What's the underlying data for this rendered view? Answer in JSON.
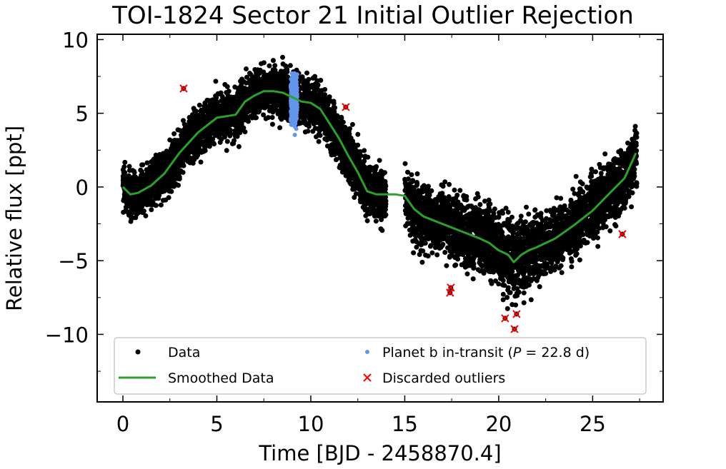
{
  "chart_data": {
    "type": "scatter",
    "title": "TOI-1824 Sector 21 Initial Outlier Rejection",
    "xlabel": "Time [BJD - 2458870.4]",
    "ylabel": "Relative flux [ppt]",
    "xlim": [
      -1.37,
      28.75
    ],
    "ylim": [
      -14.58,
      10.36
    ],
    "x_ticks": [
      0,
      5,
      10,
      15,
      20,
      25
    ],
    "x_tick_labels": [
      "0",
      "5",
      "10",
      "15",
      "20",
      "25"
    ],
    "y_ticks": [
      -10,
      -5,
      0,
      5,
      10
    ],
    "y_tick_labels": [
      "−10",
      "−5",
      "0",
      "5",
      "10"
    ],
    "x_minor_step": 2.5,
    "y_minor_step": 2.5,
    "ticks_direction": "in",
    "grid": false,
    "legend_position": "lower center (inside axes)",
    "legend": [
      {
        "label": "Data",
        "marker": "dot",
        "color": "#000000"
      },
      {
        "label": "Planet b in-transit (P =  22.8 d)",
        "label_prefix": "Planet b in-transit (",
        "label_var": "P",
        "label_suffix": " =  22.8 d)",
        "marker": "dot",
        "color": "#6495ed"
      },
      {
        "label": "Smoothed Data",
        "marker": "line",
        "color": "#2ca02c"
      },
      {
        "label": "Discarded outliers",
        "marker": "x",
        "color": "#ff0000"
      }
    ],
    "series": [
      {
        "name": "Data",
        "kind": "scatter-band",
        "color": "#000000",
        "description": "Dense photometric time series; band is smoothed trend with approx. ±1.3–2 ppt scatter",
        "segments": [
          [
            0.0,
            14.0
          ],
          [
            15.0,
            27.35
          ]
        ],
        "band_halfwidth": [
          [
            0,
            1.3
          ],
          [
            5,
            1.5
          ],
          [
            10,
            1.5
          ],
          [
            14,
            1.6
          ],
          [
            15,
            1.8
          ],
          [
            18,
            2.0
          ],
          [
            20.7,
            2.3
          ],
          [
            23,
            1.8
          ],
          [
            27.3,
            1.8
          ]
        ]
      },
      {
        "name": "Smoothed Data",
        "kind": "line",
        "color": "#2ca02c",
        "x": [
          0.0,
          0.4,
          0.8,
          1.5,
          2.2,
          3.0,
          4.0,
          5.0,
          5.5,
          6.0,
          6.5,
          7.0,
          7.5,
          8.0,
          8.5,
          9.0,
          9.5,
          10.0,
          10.5,
          11.0,
          11.5,
          12.0,
          12.5,
          13.0,
          13.5,
          14.0,
          14.5,
          15.0,
          15.5,
          16.0,
          17.0,
          18.0,
          19.0,
          19.5,
          20.0,
          20.5,
          20.8,
          21.2,
          21.6,
          22.0,
          23.0,
          24.0,
          25.0,
          26.0,
          26.7,
          27.3
        ],
        "y": [
          0.0,
          -0.5,
          -0.4,
          0.1,
          0.9,
          2.3,
          3.7,
          4.7,
          4.8,
          4.9,
          5.8,
          6.2,
          6.5,
          6.5,
          6.4,
          6.1,
          5.8,
          5.7,
          5.3,
          4.3,
          3.3,
          2.1,
          1.0,
          -0.3,
          -0.5,
          -0.5,
          -0.5,
          -0.6,
          -1.5,
          -2.0,
          -2.5,
          -3.0,
          -3.5,
          -3.8,
          -4.3,
          -4.6,
          -5.1,
          -4.6,
          -4.3,
          -4.1,
          -3.5,
          -2.6,
          -1.6,
          -0.3,
          0.6,
          2.3
        ]
      },
      {
        "name": "Planet b in-transit",
        "kind": "scatter",
        "color": "#6495ed",
        "x_center": 9.1,
        "x_width": 0.35,
        "y_range": [
          3.2,
          7.7
        ]
      },
      {
        "name": "Discarded outliers",
        "kind": "scatter",
        "marker": "x",
        "color": "#ff0000",
        "x": [
          3.23,
          11.86,
          17.45,
          17.41,
          20.34,
          20.95,
          20.84,
          26.58
        ],
        "y": [
          6.68,
          5.42,
          -6.83,
          -7.17,
          -8.91,
          -8.62,
          -9.64,
          -3.2
        ]
      }
    ]
  },
  "layout_colors": {
    "data": "#000000",
    "transit": "#6495ed",
    "smoothed": "#2ca02c",
    "outlier": "#ff0000",
    "legend_border": "#cccccc"
  }
}
